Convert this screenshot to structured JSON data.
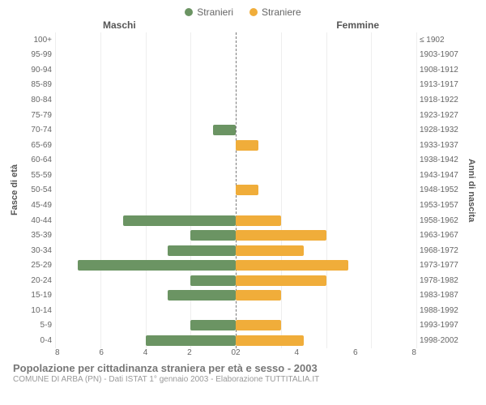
{
  "legend": {
    "male": "Stranieri",
    "female": "Straniere"
  },
  "side_titles": {
    "left": "Maschi",
    "right": "Femmine"
  },
  "axis_labels": {
    "left": "Fasce di età",
    "right": "Anni di nascita"
  },
  "colors": {
    "male": "#6b9463",
    "female": "#f0ad3a",
    "grid": "#eeeeee",
    "centerline": "#777777",
    "text": "#666666",
    "title": "#777777",
    "sub": "#999999"
  },
  "x": {
    "max": 8,
    "ticks_left": [
      "8",
      "6",
      "4",
      "2",
      "0"
    ],
    "ticks_right": [
      "0",
      "2",
      "4",
      "6",
      "8"
    ]
  },
  "rows": [
    {
      "age": "100+",
      "birth": "≤ 1902",
      "m": 0,
      "f": 0
    },
    {
      "age": "95-99",
      "birth": "1903-1907",
      "m": 0,
      "f": 0
    },
    {
      "age": "90-94",
      "birth": "1908-1912",
      "m": 0,
      "f": 0
    },
    {
      "age": "85-89",
      "birth": "1913-1917",
      "m": 0,
      "f": 0
    },
    {
      "age": "80-84",
      "birth": "1918-1922",
      "m": 0,
      "f": 0
    },
    {
      "age": "75-79",
      "birth": "1923-1927",
      "m": 0,
      "f": 0
    },
    {
      "age": "70-74",
      "birth": "1928-1932",
      "m": 1,
      "f": 0
    },
    {
      "age": "65-69",
      "birth": "1933-1937",
      "m": 0,
      "f": 1
    },
    {
      "age": "60-64",
      "birth": "1938-1942",
      "m": 0,
      "f": 0
    },
    {
      "age": "55-59",
      "birth": "1943-1947",
      "m": 0,
      "f": 0
    },
    {
      "age": "50-54",
      "birth": "1948-1952",
      "m": 0,
      "f": 1
    },
    {
      "age": "45-49",
      "birth": "1953-1957",
      "m": 0,
      "f": 0
    },
    {
      "age": "40-44",
      "birth": "1958-1962",
      "m": 5,
      "f": 2
    },
    {
      "age": "35-39",
      "birth": "1963-1967",
      "m": 2,
      "f": 4
    },
    {
      "age": "30-34",
      "birth": "1968-1972",
      "m": 3,
      "f": 3
    },
    {
      "age": "25-29",
      "birth": "1973-1977",
      "m": 7,
      "f": 5
    },
    {
      "age": "20-24",
      "birth": "1978-1982",
      "m": 2,
      "f": 4
    },
    {
      "age": "15-19",
      "birth": "1983-1987",
      "m": 3,
      "f": 2
    },
    {
      "age": "10-14",
      "birth": "1988-1992",
      "m": 0,
      "f": 0
    },
    {
      "age": "5-9",
      "birth": "1993-1997",
      "m": 2,
      "f": 2
    },
    {
      "age": "0-4",
      "birth": "1998-2002",
      "m": 4,
      "f": 3
    }
  ],
  "footer": {
    "title": "Popolazione per cittadinanza straniera per età e sesso - 2003",
    "sub": "COMUNE DI ARBA (PN) - Dati ISTAT 1° gennaio 2003 - Elaborazione TUTTITALIA.IT"
  }
}
